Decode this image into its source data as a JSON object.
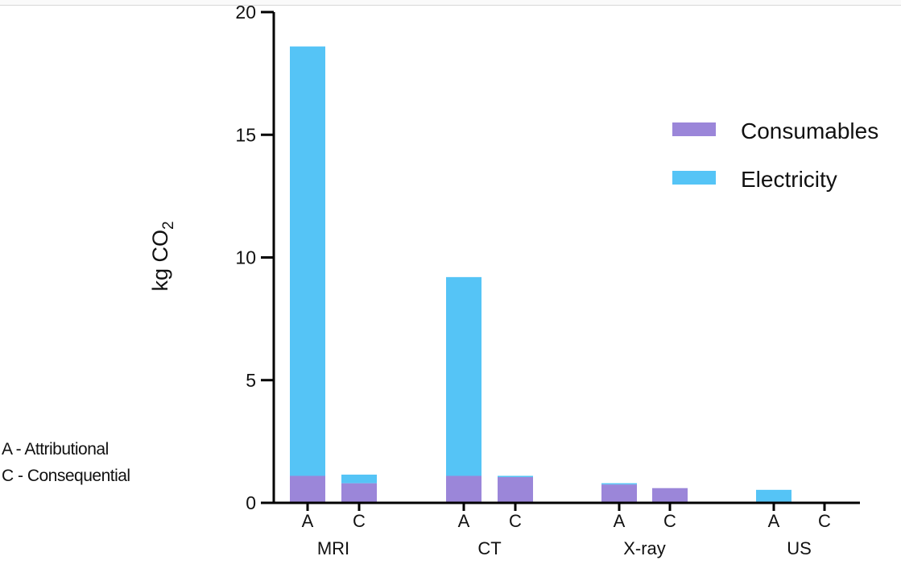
{
  "chart_data": {
    "type": "bar",
    "stacked": true,
    "ylabel_main": "kg CO",
    "ylabel_sub": "2",
    "ylim": [
      0,
      20
    ],
    "yticks": [
      0,
      5,
      10,
      15,
      20
    ],
    "groups": [
      "MRI",
      "CT",
      "X-ray",
      "US"
    ],
    "categories": [
      "A",
      "C",
      "A",
      "C",
      "A",
      "C",
      "A",
      "C"
    ],
    "category_group": [
      0,
      0,
      1,
      1,
      2,
      2,
      3,
      3
    ],
    "series": [
      {
        "name": "Consumables",
        "color": "#9b86d9",
        "values": [
          1.1,
          0.8,
          1.1,
          1.05,
          0.75,
          0.6,
          0.05,
          0
        ]
      },
      {
        "name": "Electricity",
        "color": "#55c4f6",
        "values": [
          17.5,
          0.35,
          8.1,
          0.05,
          0.05,
          0.0,
          0.48,
          0
        ]
      }
    ],
    "legend_position": "top-right",
    "grid": false,
    "annotations": [
      "A - Attributional",
      "C - Consequential"
    ]
  }
}
